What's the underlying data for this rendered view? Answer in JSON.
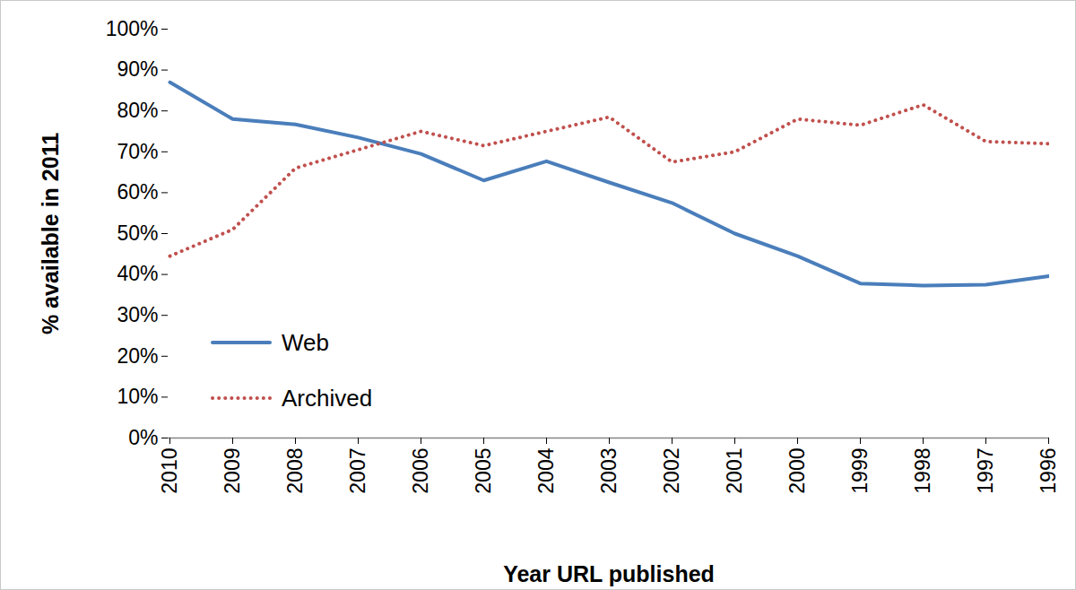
{
  "chart_data": {
    "type": "line",
    "x_label": "Year URL published",
    "y_label": "% available in 2011",
    "categories": [
      "2010",
      "2009",
      "2008",
      "2007",
      "2006",
      "2005",
      "2004",
      "2003",
      "2002",
      "2001",
      "2000",
      "1999",
      "1998",
      "1997",
      "1996"
    ],
    "series": [
      {
        "name": "Web",
        "color": "#4a7ebb",
        "line_style": "solid",
        "values": [
          87,
          78,
          76.7,
          73.5,
          69.5,
          63,
          67.7,
          62.5,
          57.5,
          50,
          44.5,
          37.8,
          37.3,
          37.5,
          39.6
        ]
      },
      {
        "name": "Archived",
        "color": "#c0504d",
        "line_style": "dotted",
        "values": [
          44.5,
          51,
          66,
          70.5,
          75,
          71.5,
          75,
          78.5,
          67.5,
          70,
          78,
          76.5,
          81.5,
          72.5,
          72
        ]
      }
    ],
    "ylim": [
      0,
      100
    ],
    "yticks": [
      {
        "value": 0,
        "label": "0%"
      },
      {
        "value": 10,
        "label": "10%"
      },
      {
        "value": 20,
        "label": "20%"
      },
      {
        "value": 30,
        "label": "30%"
      },
      {
        "value": 40,
        "label": "40%"
      },
      {
        "value": 50,
        "label": "50%"
      },
      {
        "value": 60,
        "label": "60%"
      },
      {
        "value": 70,
        "label": "70%"
      },
      {
        "value": 80,
        "label": "80%"
      },
      {
        "value": 90,
        "label": "90%"
      },
      {
        "value": 100,
        "label": "100%"
      }
    ],
    "grid": false,
    "legend": "bottom-left"
  }
}
